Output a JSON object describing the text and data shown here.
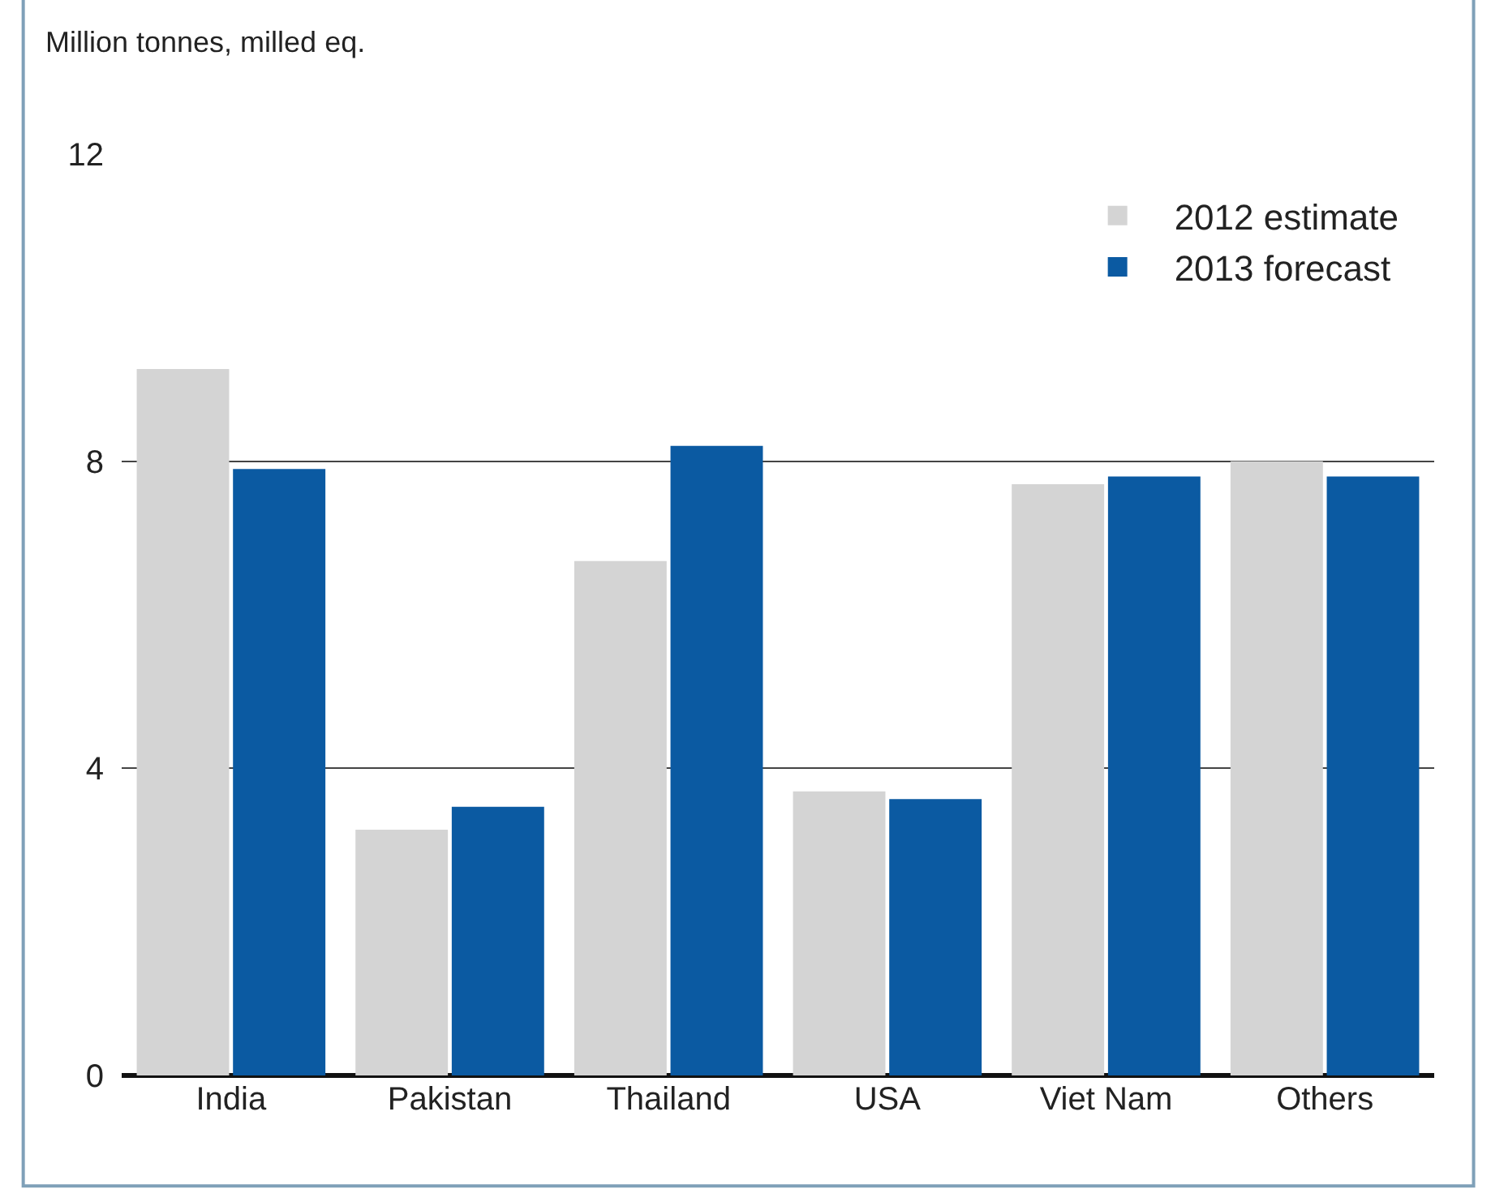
{
  "chart_data": {
    "type": "bar",
    "ylabel": "Million tonnes, milled eq.",
    "categories": [
      "India",
      "Pakistan",
      "Thailand",
      "USA",
      "Viet Nam",
      "Others"
    ],
    "series": [
      {
        "name": "2012 estimate",
        "color": "#d4d4d4",
        "values": [
          9.2,
          3.2,
          6.7,
          3.7,
          7.7,
          8.0
        ]
      },
      {
        "name": "2013 forecast",
        "color": "#0b5aa2",
        "values": [
          7.9,
          3.5,
          8.2,
          3.6,
          7.8,
          7.8
        ]
      }
    ],
    "ylim": [
      0,
      12
    ],
    "yticks": [
      0,
      4,
      8,
      12
    ],
    "grid": "y",
    "legend": "top right"
  }
}
